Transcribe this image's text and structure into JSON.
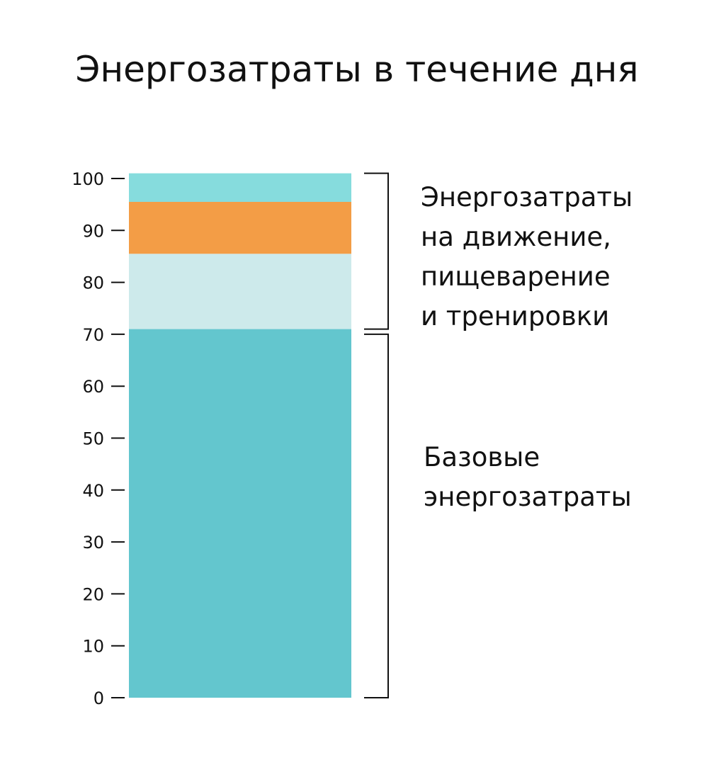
{
  "chart_data": {
    "type": "bar",
    "stacked": true,
    "title": "Энергозатраты в течение дня",
    "xlabel": "",
    "ylabel": "",
    "ylim": [
      0,
      100
    ],
    "yticks": [
      0,
      10,
      20,
      30,
      40,
      50,
      60,
      70,
      80,
      90,
      100
    ],
    "ytick_labels": [
      "0",
      "10",
      "20",
      "30",
      "40",
      "50",
      "60",
      "70",
      "80",
      "90",
      "100"
    ],
    "grid": false,
    "legend": "none",
    "categories": [
      ""
    ],
    "segments": [
      {
        "name": "",
        "value": 71,
        "color": "#63c6ce"
      },
      {
        "name": "",
        "value": 14.5,
        "color": "#cdeaeb"
      },
      {
        "name": "",
        "value": 10,
        "color": "#f39d46"
      },
      {
        "name": "",
        "value": 5.5,
        "color": "#86dcdd"
      }
    ],
    "annotations": [
      {
        "from": 71,
        "to": 101,
        "lines": [
          "Энергозатраты",
          "на движение,",
          "пищеварение",
          "и тренировки"
        ]
      },
      {
        "from": 0,
        "to": 70,
        "lines": [
          "Базовые",
          "энергозатраты"
        ]
      }
    ]
  }
}
